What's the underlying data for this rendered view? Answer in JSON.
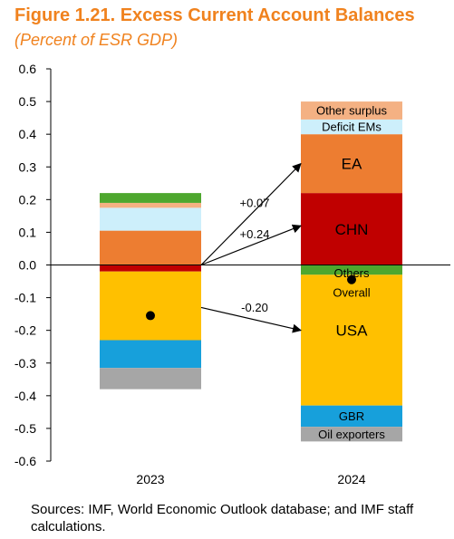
{
  "title": "Figure 1.21. Excess Current Account Balances",
  "subtitle": "(Percent of ESR GDP)",
  "note": "Sources: IMF, World Economic Outlook database; and IMF staff calculations.",
  "chart_data": {
    "type": "bar",
    "stacked": true,
    "categories": [
      "2023",
      "2024"
    ],
    "ylim": [
      -0.6,
      0.6
    ],
    "yticks": [
      "0.6",
      "0.5",
      "0.4",
      "0.3",
      "0.2",
      "0.1",
      "0.0",
      "-0.1",
      "-0.2",
      "-0.3",
      "-0.4",
      "-0.5",
      "-0.6"
    ],
    "ytick_values": [
      0.6,
      0.5,
      0.4,
      0.3,
      0.2,
      0.1,
      0.0,
      -0.1,
      -0.2,
      -0.3,
      -0.4,
      -0.5,
      -0.6
    ],
    "grid": false,
    "legend": "none",
    "series": [
      {
        "key": "chn",
        "label": "CHN",
        "color": "#C00000",
        "values": [
          -0.02,
          0.22
        ]
      },
      {
        "key": "ea",
        "label": "EA",
        "color": "#ED7D31",
        "values": [
          0.105,
          0.18
        ]
      },
      {
        "key": "deficit_ems",
        "label": "Deficit EMs",
        "color": "#CDEFFB",
        "values": [
          0.07,
          0.045
        ]
      },
      {
        "key": "other_surplus",
        "label": "Other surplus",
        "color": "#F4B183",
        "values": [
          0.015,
          0.055
        ]
      },
      {
        "key": "others",
        "label": "Others",
        "color": "#4EA72E",
        "values": [
          0.03,
          -0.03
        ]
      },
      {
        "key": "usa",
        "label": "USA",
        "color": "#FFC000",
        "values": [
          -0.21,
          -0.4
        ]
      },
      {
        "key": "gbr",
        "label": "GBR",
        "color": "#17A0DB",
        "values": [
          -0.085,
          -0.065
        ]
      },
      {
        "key": "oil_exporters",
        "label": "Oil exporters",
        "color": "#A6A6A6",
        "values": [
          -0.065,
          -0.045
        ]
      }
    ],
    "overall": {
      "label": "Overall",
      "values": [
        -0.155,
        -0.045
      ]
    },
    "annotations": [
      {
        "label": "+0.07",
        "from": [
          0.0,
          0.0
        ],
        "to": [
          1.0,
          0.31
        ]
      },
      {
        "label": "+0.24",
        "from": [
          0.0,
          0.0
        ],
        "to": [
          1.0,
          0.12
        ]
      },
      {
        "label": "-0.20",
        "from": [
          0.0,
          -0.13
        ],
        "to": [
          1.0,
          -0.2
        ]
      }
    ]
  }
}
